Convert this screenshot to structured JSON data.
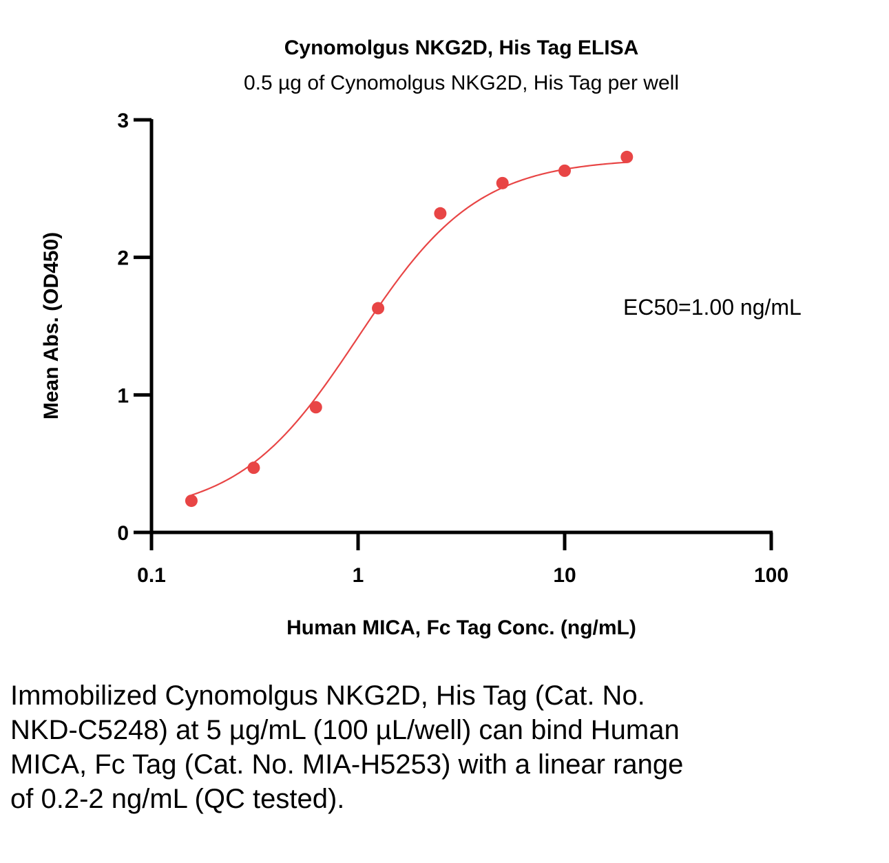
{
  "chart_data": {
    "type": "scatter",
    "title": "Cynomolgus NKG2D, His Tag ELISA",
    "subtitle": "0.5 µg of Cynomolgus NKG2D, His Tag per well",
    "xlabel": "Human MICA, Fc Tag Conc. (ng/mL)",
    "ylabel": "Mean Abs. (OD450)",
    "x_scale": "log",
    "xlim": [
      0.1,
      100
    ],
    "ylim": [
      0,
      3
    ],
    "x_ticks": [
      {
        "value": 0.1,
        "label": "0.1"
      },
      {
        "value": 1,
        "label": "1"
      },
      {
        "value": 10,
        "label": "10"
      },
      {
        "value": 100,
        "label": "100"
      }
    ],
    "y_ticks": [
      {
        "value": 0,
        "label": "0"
      },
      {
        "value": 1,
        "label": "1"
      },
      {
        "value": 2,
        "label": "2"
      },
      {
        "value": 3,
        "label": "3"
      }
    ],
    "grid": false,
    "color": "#e84545",
    "series": [
      {
        "x": [
          0.156,
          0.3125,
          0.625,
          1.25,
          2.5,
          5,
          10,
          20
        ],
        "y": [
          0.23,
          0.47,
          0.91,
          1.63,
          2.32,
          2.54,
          2.63,
          2.73
        ]
      }
    ],
    "fit": {
      "type": "4PL",
      "bottom": 0.12,
      "top": 2.72,
      "ec50": 1.0,
      "hill": 1.5
    },
    "annotation": "EC50=1.00 ng/mL"
  },
  "caption": "Immobilized Cynomolgus NKG2D, His Tag (Cat. No. NKD-C5248) at 5 µg/mL (100 µL/well) can bind Human MICA, Fc Tag (Cat. No. MIA-H5253) with a linear range of 0.2-2 ng/mL (QC tested)."
}
